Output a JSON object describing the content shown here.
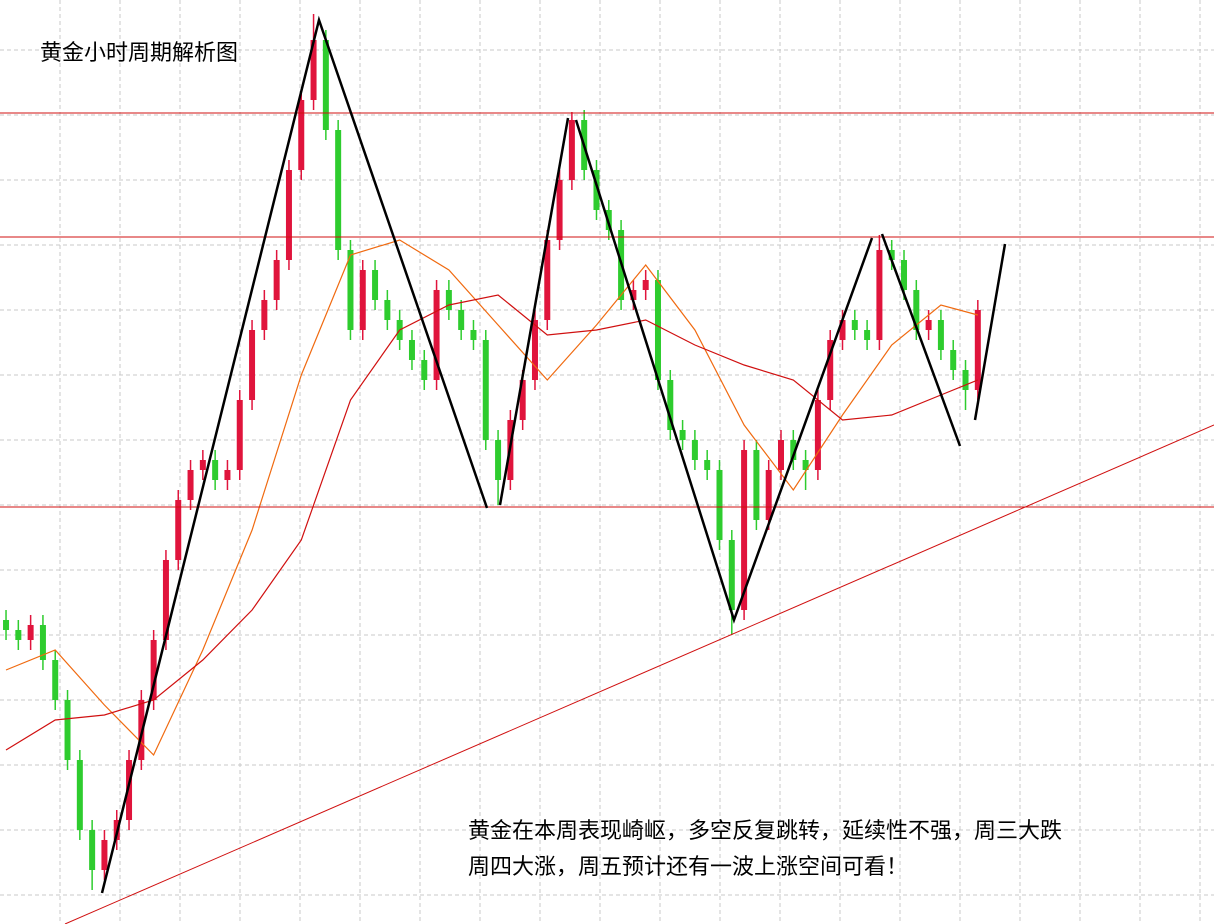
{
  "chart_data": {
    "type": "candlestick",
    "title": "黄金小时周期解析图",
    "annotation": [
      "黄金在本周表现崎岖，多空反复跳转，延续性不强，周三大跌",
      "周四大涨，周五预计还有一波上涨空间可看！"
    ],
    "up_color": "#e0143c",
    "down_color": "#2ecc2e",
    "xlim": [
      -0.49,
      98.2
    ],
    "ylim": [
      0,
      924
    ],
    "ohlc": [
      [
        304,
        314,
        284,
        294
      ],
      [
        294,
        304,
        274,
        284
      ],
      [
        284,
        309,
        274,
        299
      ],
      [
        299,
        309,
        254,
        264
      ],
      [
        264,
        274,
        214,
        224
      ],
      [
        224,
        234,
        154,
        164
      ],
      [
        164,
        174,
        84,
        94
      ],
      [
        94,
        104,
        34,
        54
      ],
      [
        54,
        94,
        44,
        84
      ],
      [
        84,
        114,
        74,
        104
      ],
      [
        104,
        174,
        94,
        164
      ],
      [
        164,
        234,
        154,
        224
      ],
      [
        224,
        294,
        214,
        284
      ],
      [
        284,
        374,
        274,
        364
      ],
      [
        364,
        434,
        354,
        424
      ],
      [
        424,
        464,
        414,
        454
      ],
      [
        454,
        474,
        444,
        464
      ],
      [
        464,
        474,
        434,
        444
      ],
      [
        444,
        464,
        434,
        454
      ],
      [
        454,
        534,
        444,
        524
      ],
      [
        524,
        604,
        514,
        594
      ],
      [
        594,
        634,
        584,
        624
      ],
      [
        624,
        674,
        614,
        664
      ],
      [
        664,
        764,
        654,
        754
      ],
      [
        754,
        834,
        744,
        824
      ],
      [
        824,
        910,
        814,
        884
      ],
      [
        884,
        894,
        784,
        794
      ],
      [
        794,
        804,
        664,
        674
      ],
      [
        674,
        684,
        584,
        594
      ],
      [
        594,
        664,
        584,
        654
      ],
      [
        654,
        664,
        614,
        624
      ],
      [
        624,
        634,
        594,
        604
      ],
      [
        604,
        614,
        574,
        584
      ],
      [
        584,
        594,
        554,
        564
      ],
      [
        564,
        574,
        534,
        544
      ],
      [
        544,
        644,
        534,
        634
      ],
      [
        634,
        644,
        604,
        614
      ],
      [
        614,
        624,
        584,
        594
      ],
      [
        594,
        604,
        574,
        584
      ],
      [
        584,
        594,
        474,
        484
      ],
      [
        484,
        494,
        419,
        444
      ],
      [
        444,
        514,
        434,
        504
      ],
      [
        504,
        554,
        494,
        544
      ],
      [
        544,
        614,
        534,
        604
      ],
      [
        604,
        694,
        594,
        684
      ],
      [
        684,
        754,
        674,
        744
      ],
      [
        744,
        812,
        734,
        804
      ],
      [
        804,
        814,
        744,
        754
      ],
      [
        754,
        764,
        704,
        714
      ],
      [
        714,
        724,
        684,
        694
      ],
      [
        694,
        704,
        614,
        624
      ],
      [
        624,
        644,
        614,
        634
      ],
      [
        634,
        654,
        624,
        644
      ],
      [
        644,
        654,
        534,
        544
      ],
      [
        544,
        554,
        484,
        494
      ],
      [
        494,
        504,
        474,
        484
      ],
      [
        484,
        494,
        454,
        464
      ],
      [
        464,
        474,
        444,
        454
      ],
      [
        454,
        464,
        374,
        384
      ],
      [
        384,
        394,
        289,
        314
      ],
      [
        314,
        484,
        304,
        474
      ],
      [
        474,
        484,
        394,
        404
      ],
      [
        404,
        464,
        394,
        454
      ],
      [
        454,
        494,
        444,
        484
      ],
      [
        484,
        494,
        454,
        464
      ],
      [
        464,
        474,
        434,
        454
      ],
      [
        454,
        534,
        444,
        524
      ],
      [
        524,
        594,
        514,
        584
      ],
      [
        584,
        614,
        574,
        604
      ],
      [
        604,
        614,
        584,
        594
      ],
      [
        594,
        604,
        574,
        584
      ],
      [
        584,
        689,
        574,
        674
      ],
      [
        674,
        684,
        654,
        664
      ],
      [
        664,
        674,
        624,
        634
      ],
      [
        634,
        644,
        584,
        594
      ],
      [
        594,
        614,
        584,
        604
      ],
      [
        604,
        614,
        564,
        574
      ],
      [
        574,
        584,
        544,
        554
      ],
      [
        554,
        564,
        514,
        534
      ],
      [
        534,
        624,
        524,
        614
      ]
    ],
    "lines": [
      {
        "color": "#f06a10",
        "x": [
          0,
          4,
          8,
          12,
          16,
          20,
          24,
          28,
          32,
          36,
          40,
          44,
          48,
          52,
          56,
          60,
          64,
          68,
          72,
          76,
          79
        ],
        "values": [
          254,
          274,
          219,
          169,
          274,
          394,
          549,
          669,
          684,
          654,
          599,
          544,
          599,
          659,
          594,
          499,
          434,
          509,
          579,
          619,
          609
        ]
      },
      {
        "color": "#d01010",
        "x": [
          0,
          4,
          8,
          12,
          16,
          20,
          24,
          28,
          32,
          36,
          40,
          44,
          48,
          52,
          56,
          60,
          64,
          68,
          72,
          76,
          79
        ],
        "values": [
          174,
          204,
          209,
          224,
          264,
          314,
          384,
          524,
          594,
          619,
          629,
          589,
          594,
          604,
          579,
          559,
          544,
          504,
          509,
          529,
          544
        ]
      }
    ]
  }
}
